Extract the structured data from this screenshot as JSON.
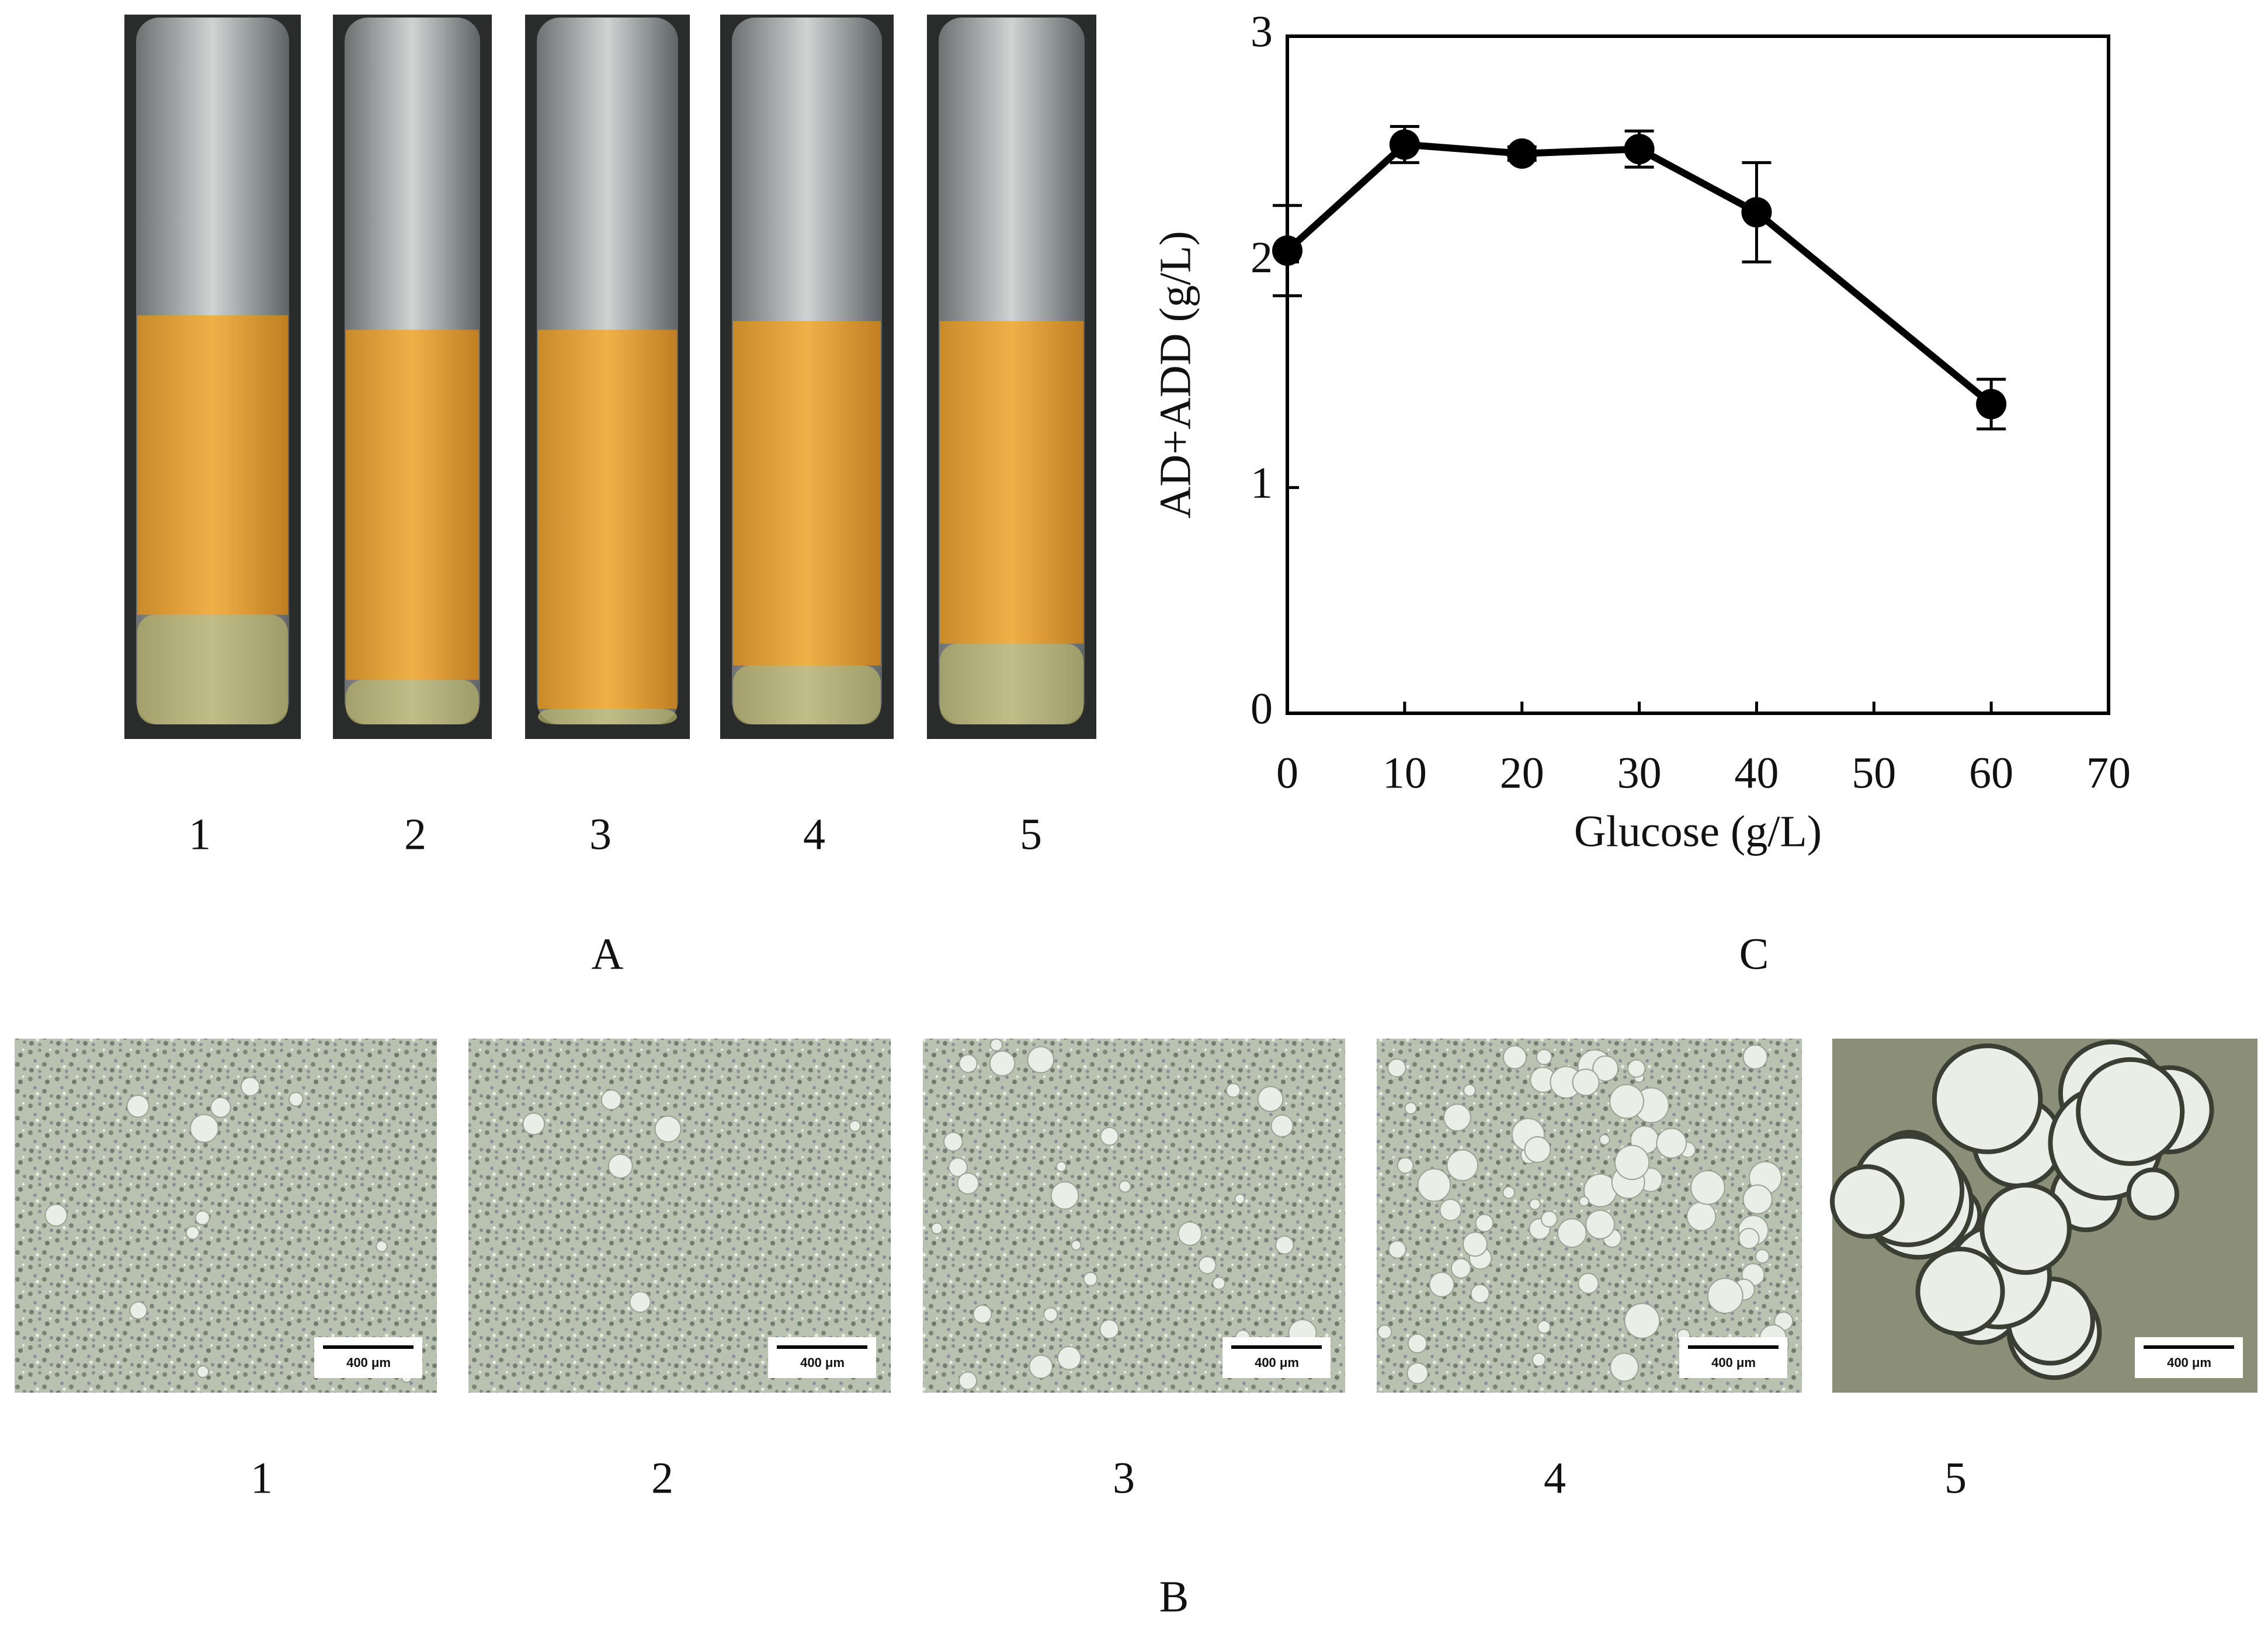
{
  "figure": {
    "panel_a_label": "A",
    "tube_labels": [
      "1",
      "2",
      "3",
      "4",
      "5"
    ],
    "panel_b_label": "B",
    "micrograph_labels": [
      "1",
      "2",
      "3",
      "4",
      "5"
    ],
    "scale_bar_text": "400 μm",
    "panel_c_label": "C"
  },
  "chart_data": {
    "type": "line",
    "x_label": "Glucose (g/L)",
    "y_label": "AD+ADD (g/L)",
    "x": [
      0,
      10,
      20,
      30,
      40,
      60
    ],
    "values": [
      2.05,
      2.52,
      2.48,
      2.5,
      2.22,
      1.37
    ],
    "errors": [
      0.2,
      0.08,
      0.03,
      0.08,
      0.22,
      0.11
    ],
    "color": "#000000",
    "xlim": [
      0,
      70
    ],
    "xticks": [
      0,
      10,
      20,
      30,
      40,
      50,
      60,
      70
    ],
    "ylim": [
      0,
      3
    ],
    "yticks": [
      0,
      1,
      2,
      3
    ]
  }
}
